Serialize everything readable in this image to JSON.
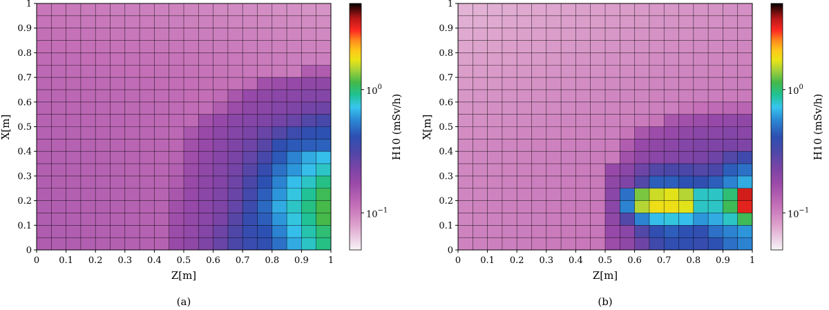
{
  "chart_data": [
    {
      "type": "heatmap",
      "caption": "(a)",
      "xlabel": "Z[m]",
      "ylabel": "X[m]",
      "xlim": [
        0,
        1
      ],
      "ylim": [
        0,
        1
      ],
      "x_ticks": [
        "0",
        "0.1",
        "0.2",
        "0.3",
        "0.4",
        "0.5",
        "0.6",
        "0.7",
        "0.8",
        "0.9",
        "1"
      ],
      "y_ticks": [
        "0",
        "0.1",
        "0.2",
        "0.3",
        "0.4",
        "0.5",
        "0.6",
        "0.7",
        "0.8",
        "0.9",
        "1"
      ],
      "colorbar": {
        "label": "H10 (mSv/h)",
        "scale": "log",
        "range": [
          0.05,
          5
        ],
        "ticks": [
          {
            "value": 1,
            "label": "10",
            "exp": "0"
          },
          {
            "value": 0.1,
            "label": "10",
            "exp": "−1"
          }
        ]
      },
      "grid_note": "20 x 20 cells, row 0 = top (X=1), column 0 = left (Z=0); values in mSv/h",
      "values": [
        [
          0.108,
          0.107,
          0.106,
          0.105,
          0.104,
          0.103,
          0.102,
          0.101,
          0.1,
          0.099,
          0.098,
          0.096,
          0.095,
          0.094,
          0.093,
          0.092,
          0.091,
          0.09,
          0.089,
          0.088
        ],
        [
          0.111,
          0.11,
          0.109,
          0.108,
          0.107,
          0.106,
          0.105,
          0.104,
          0.103,
          0.102,
          0.101,
          0.1,
          0.099,
          0.098,
          0.097,
          0.096,
          0.095,
          0.094,
          0.093,
          0.092
        ],
        [
          0.114,
          0.113,
          0.112,
          0.111,
          0.11,
          0.109,
          0.108,
          0.107,
          0.106,
          0.105,
          0.104,
          0.103,
          0.102,
          0.101,
          0.1,
          0.099,
          0.098,
          0.097,
          0.096,
          0.095
        ],
        [
          0.117,
          0.116,
          0.115,
          0.114,
          0.113,
          0.112,
          0.111,
          0.11,
          0.109,
          0.108,
          0.107,
          0.106,
          0.105,
          0.104,
          0.103,
          0.102,
          0.101,
          0.1,
          0.099,
          0.099
        ],
        [
          0.12,
          0.119,
          0.118,
          0.117,
          0.116,
          0.115,
          0.114,
          0.113,
          0.112,
          0.111,
          0.11,
          0.109,
          0.108,
          0.107,
          0.106,
          0.105,
          0.104,
          0.103,
          0.102,
          0.102
        ],
        [
          0.122,
          0.121,
          0.12,
          0.119,
          0.118,
          0.117,
          0.116,
          0.115,
          0.114,
          0.113,
          0.112,
          0.111,
          0.11,
          0.109,
          0.108,
          0.107,
          0.106,
          0.105,
          0.14,
          0.14
        ],
        [
          0.125,
          0.124,
          0.123,
          0.122,
          0.121,
          0.12,
          0.119,
          0.118,
          0.117,
          0.116,
          0.115,
          0.114,
          0.113,
          0.112,
          0.12,
          0.16,
          0.17,
          0.18,
          0.19,
          0.19
        ],
        [
          0.127,
          0.126,
          0.125,
          0.124,
          0.123,
          0.122,
          0.121,
          0.12,
          0.119,
          0.118,
          0.117,
          0.116,
          0.12,
          0.15,
          0.18,
          0.19,
          0.2,
          0.2,
          0.21,
          0.21
        ],
        [
          0.129,
          0.128,
          0.127,
          0.126,
          0.125,
          0.124,
          0.123,
          0.122,
          0.121,
          0.12,
          0.119,
          0.118,
          0.14,
          0.17,
          0.19,
          0.2,
          0.21,
          0.22,
          0.24,
          0.25
        ],
        [
          0.131,
          0.13,
          0.129,
          0.128,
          0.127,
          0.126,
          0.125,
          0.124,
          0.123,
          0.122,
          0.121,
          0.16,
          0.18,
          0.2,
          0.21,
          0.22,
          0.24,
          0.26,
          0.3,
          0.33
        ],
        [
          0.133,
          0.132,
          0.131,
          0.13,
          0.129,
          0.128,
          0.127,
          0.126,
          0.125,
          0.124,
          0.15,
          0.175,
          0.195,
          0.21,
          0.23,
          0.26,
          0.3,
          0.36,
          0.4,
          0.42
        ],
        [
          0.134,
          0.133,
          0.132,
          0.131,
          0.13,
          0.129,
          0.128,
          0.127,
          0.126,
          0.125,
          0.16,
          0.18,
          0.2,
          0.22,
          0.25,
          0.29,
          0.4,
          0.44,
          0.45,
          0.46
        ],
        [
          0.135,
          0.134,
          0.133,
          0.132,
          0.131,
          0.13,
          0.129,
          0.128,
          0.127,
          0.13,
          0.165,
          0.185,
          0.205,
          0.23,
          0.27,
          0.33,
          0.44,
          0.55,
          0.65,
          0.7
        ],
        [
          0.136,
          0.135,
          0.134,
          0.133,
          0.132,
          0.131,
          0.13,
          0.129,
          0.128,
          0.135,
          0.17,
          0.19,
          0.21,
          0.24,
          0.29,
          0.38,
          0.5,
          0.6,
          0.7,
          0.8
        ],
        [
          0.137,
          0.136,
          0.135,
          0.134,
          0.133,
          0.132,
          0.131,
          0.13,
          0.129,
          0.14,
          0.175,
          0.195,
          0.215,
          0.25,
          0.32,
          0.42,
          0.55,
          0.7,
          0.8,
          0.95
        ],
        [
          0.138,
          0.137,
          0.136,
          0.135,
          0.134,
          0.133,
          0.132,
          0.131,
          0.13,
          0.15,
          0.18,
          0.2,
          0.22,
          0.26,
          0.34,
          0.45,
          0.6,
          0.75,
          0.9,
          1.1
        ],
        [
          0.139,
          0.138,
          0.137,
          0.136,
          0.135,
          0.134,
          0.133,
          0.132,
          0.131,
          0.16,
          0.18,
          0.2,
          0.22,
          0.27,
          0.36,
          0.48,
          0.65,
          0.8,
          0.95,
          1.15
        ],
        [
          0.139,
          0.138,
          0.137,
          0.136,
          0.135,
          0.134,
          0.133,
          0.132,
          0.131,
          0.165,
          0.185,
          0.2,
          0.23,
          0.29,
          0.38,
          0.45,
          0.6,
          0.75,
          0.9,
          1.15
        ],
        [
          0.14,
          0.139,
          0.138,
          0.137,
          0.136,
          0.135,
          0.134,
          0.133,
          0.132,
          0.17,
          0.185,
          0.21,
          0.25,
          0.31,
          0.38,
          0.42,
          0.55,
          0.7,
          0.85,
          1.0
        ],
        [
          0.14,
          0.139,
          0.138,
          0.137,
          0.136,
          0.135,
          0.134,
          0.133,
          0.132,
          0.175,
          0.19,
          0.22,
          0.26,
          0.32,
          0.37,
          0.4,
          0.5,
          0.65,
          0.8,
          0.95
        ]
      ]
    },
    {
      "type": "heatmap",
      "caption": "(b)",
      "xlabel": "Z[m]",
      "ylabel": "X[m]",
      "xlim": [
        0,
        1
      ],
      "ylim": [
        0,
        1
      ],
      "x_ticks": [
        "0",
        "0.1",
        "0.2",
        "0.3",
        "0.4",
        "0.5",
        "0.6",
        "0.7",
        "0.8",
        "0.9",
        "1"
      ],
      "y_ticks": [
        "0",
        "0.1",
        "0.2",
        "0.3",
        "0.4",
        "0.5",
        "0.6",
        "0.7",
        "0.8",
        "0.9",
        "1"
      ],
      "colorbar": {
        "label": "H10 (mSv/h)",
        "scale": "log",
        "range": [
          0.05,
          5
        ],
        "ticks": [
          {
            "value": 1,
            "label": "10",
            "exp": "0"
          },
          {
            "value": 0.1,
            "label": "10",
            "exp": "−1"
          }
        ]
      },
      "grid_note": "20 x 20 cells, row 0 = top (X=1), column 0 = left (Z=0); values in mSv/h",
      "values": [
        [
          0.072,
          0.073,
          0.074,
          0.075,
          0.076,
          0.077,
          0.078,
          0.079,
          0.08,
          0.081,
          0.082,
          0.083,
          0.084,
          0.085,
          0.086,
          0.087,
          0.088,
          0.089,
          0.09,
          0.091
        ],
        [
          0.074,
          0.075,
          0.076,
          0.077,
          0.078,
          0.079,
          0.08,
          0.081,
          0.082,
          0.083,
          0.084,
          0.085,
          0.086,
          0.087,
          0.088,
          0.089,
          0.09,
          0.091,
          0.092,
          0.093
        ],
        [
          0.076,
          0.077,
          0.078,
          0.079,
          0.08,
          0.081,
          0.082,
          0.083,
          0.084,
          0.085,
          0.086,
          0.087,
          0.088,
          0.089,
          0.09,
          0.091,
          0.092,
          0.093,
          0.094,
          0.095
        ],
        [
          0.078,
          0.079,
          0.08,
          0.081,
          0.082,
          0.083,
          0.084,
          0.085,
          0.086,
          0.087,
          0.088,
          0.089,
          0.09,
          0.091,
          0.092,
          0.093,
          0.094,
          0.095,
          0.096,
          0.097
        ],
        [
          0.08,
          0.081,
          0.082,
          0.083,
          0.084,
          0.085,
          0.086,
          0.087,
          0.088,
          0.089,
          0.09,
          0.091,
          0.092,
          0.093,
          0.094,
          0.095,
          0.096,
          0.097,
          0.098,
          0.099
        ],
        [
          0.082,
          0.083,
          0.084,
          0.085,
          0.086,
          0.087,
          0.088,
          0.089,
          0.09,
          0.091,
          0.092,
          0.093,
          0.094,
          0.095,
          0.096,
          0.097,
          0.098,
          0.099,
          0.1,
          0.101
        ],
        [
          0.084,
          0.085,
          0.086,
          0.087,
          0.088,
          0.089,
          0.09,
          0.091,
          0.092,
          0.093,
          0.094,
          0.095,
          0.096,
          0.097,
          0.098,
          0.099,
          0.1,
          0.101,
          0.102,
          0.103
        ],
        [
          0.086,
          0.087,
          0.088,
          0.089,
          0.09,
          0.091,
          0.092,
          0.093,
          0.094,
          0.095,
          0.096,
          0.097,
          0.098,
          0.099,
          0.1,
          0.101,
          0.102,
          0.103,
          0.104,
          0.105
        ],
        [
          0.088,
          0.089,
          0.09,
          0.091,
          0.092,
          0.093,
          0.094,
          0.095,
          0.096,
          0.097,
          0.098,
          0.099,
          0.1,
          0.101,
          0.102,
          0.11,
          0.115,
          0.12,
          0.125,
          0.128
        ],
        [
          0.09,
          0.091,
          0.092,
          0.093,
          0.094,
          0.095,
          0.096,
          0.097,
          0.098,
          0.099,
          0.1,
          0.101,
          0.105,
          0.11,
          0.15,
          0.16,
          0.17,
          0.18,
          0.185,
          0.19
        ],
        [
          0.092,
          0.093,
          0.094,
          0.095,
          0.096,
          0.097,
          0.098,
          0.099,
          0.1,
          0.101,
          0.102,
          0.11,
          0.15,
          0.17,
          0.18,
          0.19,
          0.2,
          0.2,
          0.21,
          0.2
        ],
        [
          0.094,
          0.095,
          0.096,
          0.097,
          0.098,
          0.099,
          0.1,
          0.101,
          0.102,
          0.103,
          0.104,
          0.14,
          0.18,
          0.19,
          0.2,
          0.21,
          0.22,
          0.22,
          0.23,
          0.22
        ],
        [
          0.095,
          0.096,
          0.097,
          0.098,
          0.099,
          0.1,
          0.101,
          0.102,
          0.103,
          0.104,
          0.105,
          0.16,
          0.19,
          0.2,
          0.21,
          0.22,
          0.23,
          0.25,
          0.3,
          0.35
        ],
        [
          0.096,
          0.097,
          0.098,
          0.099,
          0.1,
          0.101,
          0.102,
          0.103,
          0.104,
          0.105,
          0.18,
          0.2,
          0.25,
          0.3,
          0.32,
          0.32,
          0.3,
          0.32,
          0.45,
          0.5
        ],
        [
          0.097,
          0.098,
          0.099,
          0.1,
          0.101,
          0.102,
          0.103,
          0.104,
          0.105,
          0.106,
          0.19,
          0.22,
          0.3,
          0.45,
          0.45,
          0.42,
          0.4,
          0.45,
          0.55,
          0.65
        ],
        [
          0.097,
          0.098,
          0.099,
          0.1,
          0.101,
          0.102,
          0.103,
          0.104,
          0.105,
          0.106,
          0.2,
          0.5,
          1.3,
          1.6,
          1.7,
          1.5,
          0.8,
          0.8,
          1.0,
          3.5
        ],
        [
          0.098,
          0.099,
          0.1,
          0.101,
          0.102,
          0.103,
          0.104,
          0.105,
          0.106,
          0.107,
          0.2,
          0.55,
          1.5,
          1.8,
          1.8,
          1.7,
          0.8,
          0.8,
          1.1,
          3.3
        ],
        [
          0.098,
          0.099,
          0.1,
          0.101,
          0.102,
          0.103,
          0.104,
          0.105,
          0.106,
          0.107,
          0.19,
          0.3,
          0.55,
          0.7,
          0.75,
          0.7,
          0.6,
          0.65,
          0.8,
          1.1
        ],
        [
          0.099,
          0.1,
          0.101,
          0.102,
          0.103,
          0.104,
          0.105,
          0.106,
          0.107,
          0.108,
          0.18,
          0.2,
          0.3,
          0.4,
          0.45,
          0.42,
          0.4,
          0.5,
          0.55,
          0.6
        ],
        [
          0.099,
          0.1,
          0.101,
          0.102,
          0.103,
          0.104,
          0.105,
          0.106,
          0.107,
          0.108,
          0.17,
          0.19,
          0.25,
          0.35,
          0.4,
          0.4,
          0.38,
          0.42,
          0.5,
          0.55
        ]
      ]
    }
  ]
}
